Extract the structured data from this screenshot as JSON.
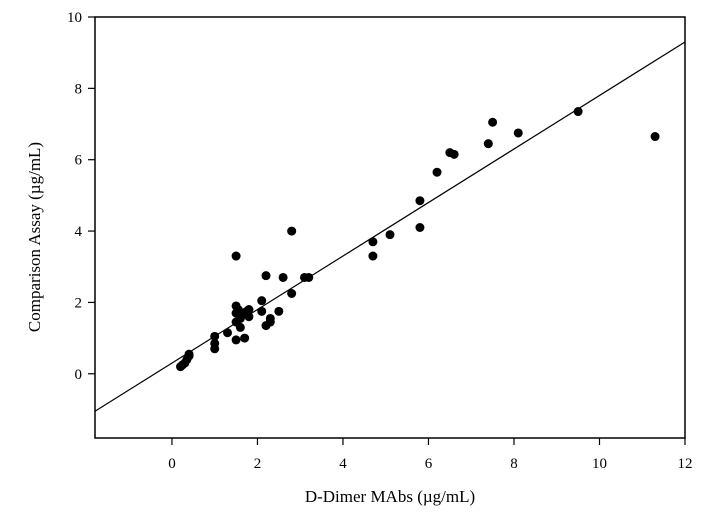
{
  "chart_data": {
    "type": "scatter",
    "title": "",
    "xlabel": "D-Dimer MAbs (µg/mL)",
    "ylabel": "Comparison Assay (µg/mL)",
    "xlim": [
      -1.8,
      12
    ],
    "ylim": [
      -1.8,
      10
    ],
    "x_ticks": [
      0,
      2,
      4,
      6,
      8,
      10,
      12
    ],
    "y_ticks": [
      0,
      2,
      4,
      6,
      8,
      10
    ],
    "x_tick_labels": [
      "0",
      "2",
      "4",
      "6",
      "8",
      "10",
      "12"
    ],
    "y_tick_labels": [
      "0",
      "2",
      "4",
      "6",
      "8",
      "10"
    ],
    "grid": false,
    "legend": "none",
    "point_color": "#000000",
    "line_color": "#000000",
    "points": [
      {
        "x": 0.2,
        "y": 0.2
      },
      {
        "x": 0.25,
        "y": 0.25
      },
      {
        "x": 0.3,
        "y": 0.3
      },
      {
        "x": 0.35,
        "y": 0.4
      },
      {
        "x": 0.4,
        "y": 0.5
      },
      {
        "x": 0.4,
        "y": 0.55
      },
      {
        "x": 1.0,
        "y": 0.7
      },
      {
        "x": 1.0,
        "y": 0.85
      },
      {
        "x": 1.0,
        "y": 1.05
      },
      {
        "x": 1.3,
        "y": 1.15
      },
      {
        "x": 1.5,
        "y": 0.95
      },
      {
        "x": 1.5,
        "y": 1.45
      },
      {
        "x": 1.5,
        "y": 1.7
      },
      {
        "x": 1.5,
        "y": 1.9
      },
      {
        "x": 1.55,
        "y": 1.8
      },
      {
        "x": 1.6,
        "y": 1.3
      },
      {
        "x": 1.6,
        "y": 1.55
      },
      {
        "x": 1.65,
        "y": 1.7
      },
      {
        "x": 1.7,
        "y": 1.0
      },
      {
        "x": 1.75,
        "y": 1.75
      },
      {
        "x": 1.8,
        "y": 1.6
      },
      {
        "x": 1.8,
        "y": 1.8
      },
      {
        "x": 1.5,
        "y": 3.3
      },
      {
        "x": 2.1,
        "y": 2.05
      },
      {
        "x": 2.1,
        "y": 1.75
      },
      {
        "x": 2.2,
        "y": 1.35
      },
      {
        "x": 2.3,
        "y": 1.45
      },
      {
        "x": 2.3,
        "y": 1.55
      },
      {
        "x": 2.5,
        "y": 1.75
      },
      {
        "x": 2.2,
        "y": 2.75
      },
      {
        "x": 2.6,
        "y": 2.7
      },
      {
        "x": 2.8,
        "y": 2.25
      },
      {
        "x": 2.8,
        "y": 4.0
      },
      {
        "x": 3.1,
        "y": 2.7
      },
      {
        "x": 3.2,
        "y": 2.7
      },
      {
        "x": 4.7,
        "y": 3.3
      },
      {
        "x": 4.7,
        "y": 3.7
      },
      {
        "x": 5.1,
        "y": 3.9
      },
      {
        "x": 5.8,
        "y": 4.1
      },
      {
        "x": 5.8,
        "y": 4.85
      },
      {
        "x": 6.2,
        "y": 5.65
      },
      {
        "x": 6.5,
        "y": 6.2
      },
      {
        "x": 6.6,
        "y": 6.15
      },
      {
        "x": 7.4,
        "y": 6.45
      },
      {
        "x": 7.5,
        "y": 7.05
      },
      {
        "x": 8.1,
        "y": 6.75
      },
      {
        "x": 9.5,
        "y": 7.35
      },
      {
        "x": 11.3,
        "y": 6.65
      }
    ],
    "fit_line": {
      "x": [
        -1.8,
        12
      ],
      "y": [
        -1.05,
        9.3
      ]
    }
  }
}
